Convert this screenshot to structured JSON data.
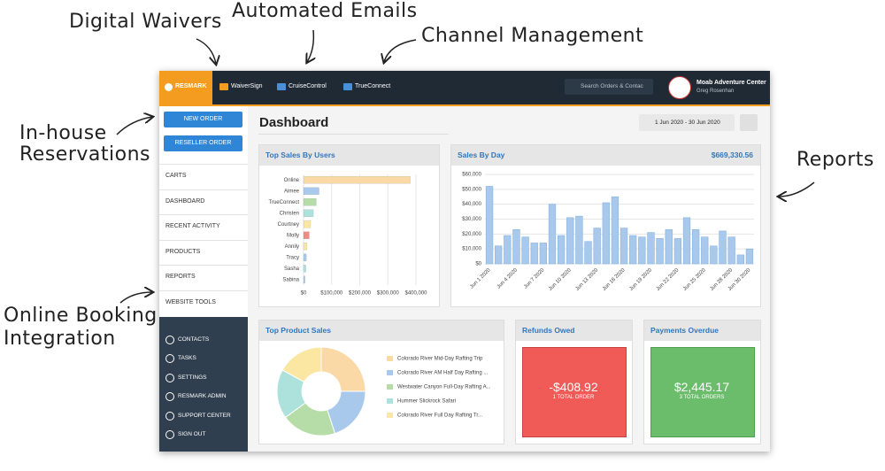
{
  "annotations": {
    "digital_waivers": "Digital Waivers",
    "automated_emails": "Automated Emails",
    "channel_management": "Channel Management",
    "in_house": [
      "In-house",
      "Reservations"
    ],
    "reports": "Reports",
    "online_booking": [
      "Online Booking",
      "Integration"
    ]
  },
  "topbar": {
    "brand": "RESMARK",
    "tabs": [
      "WaiverSign",
      "CruiseControl",
      "TrueConnect"
    ],
    "search_placeholder": "Search Orders & Contac",
    "account": {
      "name": "Moab Adventure Center",
      "user": "Greg Rosenhan"
    }
  },
  "sidebar": {
    "buttons": [
      "NEW ORDER",
      "RESELLER ORDER"
    ],
    "menu": [
      "CARTS",
      "DASHBOARD",
      "RECENT ACTIVITY",
      "PRODUCTS",
      "REPORTS",
      "WEBSITE TOOLS"
    ],
    "footer_menu": [
      "CONTACTS",
      "TASKS",
      "SETTINGS",
      "RESMARK ADMIN",
      "SUPPORT CENTER",
      "SIGN OUT"
    ]
  },
  "dashboard": {
    "title": "Dashboard",
    "date_range": "1 Jun 2020 - 30 Jun 2020",
    "sales_total": "$669,330.56",
    "refunds": {
      "title": "Refunds Owed",
      "amount": "-$408.92",
      "note": "1 TOTAL ORDER"
    },
    "payments": {
      "title": "Payments Overdue",
      "amount": "$2,445.17",
      "note": "3 TOTAL ORDERS"
    }
  },
  "chart_data": [
    {
      "type": "hbar",
      "title": "Top Sales By Users",
      "categories": [
        "Online",
        "Aimee",
        "TrueConnect",
        "Christen",
        "Courtney",
        "Molly",
        "Annily",
        "Tracy",
        "Sasha",
        "Sabina"
      ],
      "values": [
        380000,
        55000,
        45000,
        35000,
        25000,
        20000,
        12000,
        10000,
        8000,
        5000
      ],
      "colors": [
        "#fbd9a6",
        "#a9c9ec",
        "#b6dca7",
        "#ace1dc",
        "#fbe6a2",
        "#f08a84",
        "#fbe6a2",
        "#a9c9ec",
        "#ace1dc",
        "#a9c9ec"
      ],
      "xlim": [
        0,
        400000
      ],
      "xticks": [
        {
          "value": 0,
          "label": "$0"
        },
        {
          "value": 100000,
          "label": "$100,000"
        },
        {
          "value": 200000,
          "label": "$200,000"
        },
        {
          "value": 300000,
          "label": "$300,000"
        },
        {
          "value": 400000,
          "label": "$400,000"
        }
      ],
      "grid": true
    },
    {
      "type": "bar",
      "title": "Sales By Day",
      "categories": [
        "Jun 1 2020",
        null,
        null,
        "Jun 4 2020",
        null,
        null,
        "Jun 7 2020",
        null,
        null,
        "Jun 10 2020",
        null,
        null,
        "Jun 13 2020",
        null,
        null,
        "Jun 16 2020",
        null,
        null,
        "Jun 19 2020",
        null,
        null,
        "Jun 22 2020",
        null,
        null,
        "Jun 25 2020",
        null,
        null,
        "Jun 28 2020",
        null,
        "Jun 30 2020"
      ],
      "values": [
        52000,
        12000,
        19000,
        23000,
        18000,
        14000,
        14000,
        40000,
        19000,
        31000,
        32000,
        15000,
        24000,
        41000,
        45000,
        24000,
        19000,
        18000,
        21000,
        17000,
        23000,
        17000,
        31000,
        23000,
        18000,
        12000,
        22000,
        18000,
        6000,
        10000
      ],
      "color": "#a9c9ec",
      "ylim": [
        0,
        60000
      ],
      "yticks": [
        {
          "value": 0,
          "label": "$0"
        },
        {
          "value": 10000,
          "label": "$10,000"
        },
        {
          "value": 20000,
          "label": "$20,000"
        },
        {
          "value": 30000,
          "label": "$30,000"
        },
        {
          "value": 40000,
          "label": "$40,000"
        },
        {
          "value": 50000,
          "label": "$50,000"
        },
        {
          "value": 60000,
          "label": "$60,000"
        }
      ],
      "grid": true
    },
    {
      "type": "pie",
      "title": "Top Product Sales",
      "donut": true,
      "categories": [
        "Colorado River Mid-Day Rafting Trip",
        "Colorado River AM Half Day Rafting ...",
        "Westwater Canyon Full-Day Rafting A...",
        "Hummer Slickrock Safari",
        "Colorado River Full Day Rafting Tr..."
      ],
      "values": [
        25,
        20,
        20,
        18,
        17
      ],
      "colors": [
        "#fbd9a6",
        "#a9c9ec",
        "#b6dca7",
        "#ace1dc",
        "#fbe6a2"
      ]
    }
  ]
}
